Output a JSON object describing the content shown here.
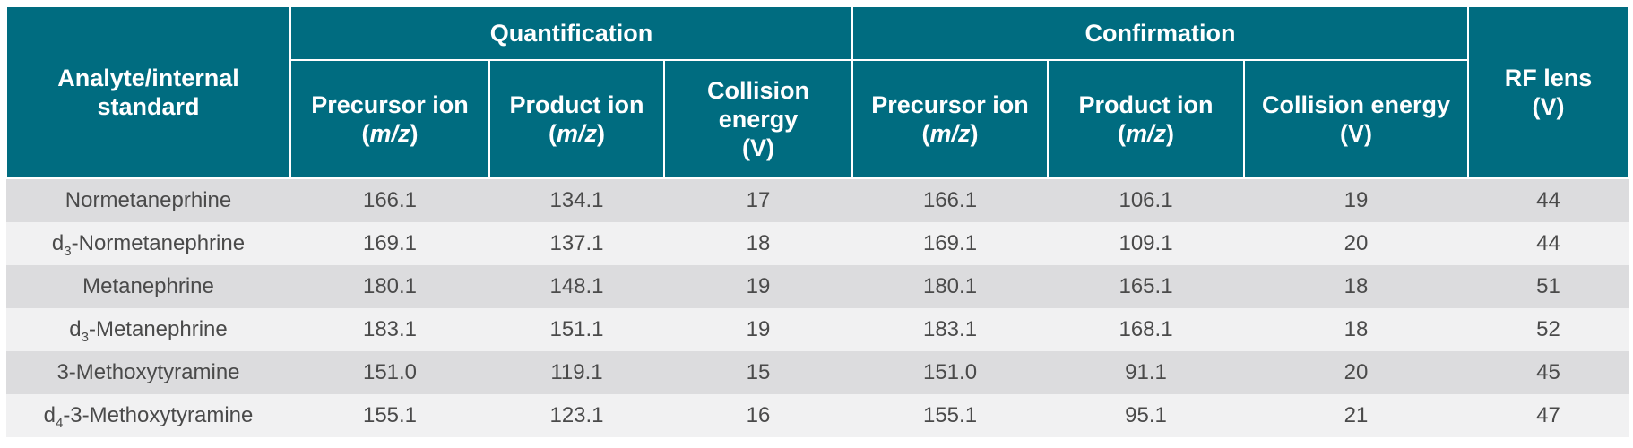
{
  "header": {
    "analyte": "Analyte/internal standard",
    "quant_group": "Quantification",
    "conf_group": "Confirmation",
    "rf_lens": "RF lens",
    "rf_unit": "(V)",
    "precursor": "Precursor ion",
    "product": "Product ion",
    "mz": "m/z",
    "collision": "Collision energy",
    "collision_unit": "(V)"
  },
  "rows": [
    {
      "prefix": "",
      "sub": "",
      "name": "Normetaneprhine",
      "q_precursor": "166.1",
      "q_product": "134.1",
      "q_ce": "17",
      "c_precursor": "166.1",
      "c_product": "106.1",
      "c_ce": "19",
      "rf": "44"
    },
    {
      "prefix": "d",
      "sub": "3",
      "name": "-Normetanephrine",
      "q_precursor": "169.1",
      "q_product": "137.1",
      "q_ce": "18",
      "c_precursor": "169.1",
      "c_product": "109.1",
      "c_ce": "20",
      "rf": "44"
    },
    {
      "prefix": "",
      "sub": "",
      "name": "Metanephrine",
      "q_precursor": "180.1",
      "q_product": "148.1",
      "q_ce": "19",
      "c_precursor": "180.1",
      "c_product": "165.1",
      "c_ce": "18",
      "rf": "51"
    },
    {
      "prefix": "d",
      "sub": "3",
      "name": "-Metanephrine",
      "q_precursor": "183.1",
      "q_product": "151.1",
      "q_ce": "19",
      "c_precursor": "183.1",
      "c_product": "168.1",
      "c_ce": "18",
      "rf": "52"
    },
    {
      "prefix": "",
      "sub": "",
      "name": "3-Methoxytyramine",
      "q_precursor": "151.0",
      "q_product": "119.1",
      "q_ce": "15",
      "c_precursor": "151.0",
      "c_product": "91.1",
      "c_ce": "20",
      "rf": "45"
    },
    {
      "prefix": "d",
      "sub": "4",
      "name": "-3-Methoxytyramine",
      "q_precursor": "155.1",
      "q_product": "123.1",
      "q_ce": "16",
      "c_precursor": "155.1",
      "c_product": "95.1",
      "c_ce": "21",
      "rf": "47"
    }
  ]
}
